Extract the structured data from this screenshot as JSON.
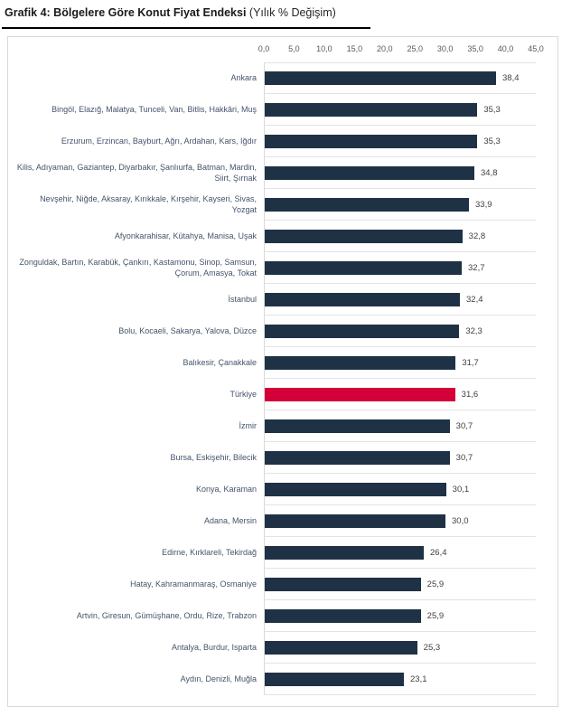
{
  "header": {
    "title": "Grafik 4: Bölgelere Göre Konut Fiyat Endeksi",
    "subtitle": "(Yılık % Değişim)"
  },
  "chart_data": {
    "type": "bar",
    "orientation": "horizontal",
    "title": "Grafik 4: Bölgelere Göre Konut Fiyat Endeksi",
    "subtitle": "(Yılık % Değişim)",
    "xlim": [
      0,
      45
    ],
    "x_tick_labels": [
      "0,0",
      "5,0",
      "10,0",
      "15,0",
      "20,0",
      "25,0",
      "30,0",
      "35,0",
      "40,0",
      "45,0"
    ],
    "axis_position": "top",
    "legend": "none",
    "grid": "horizontal category separators",
    "bar_color": "#1f3245",
    "highlight_color": "#d40038",
    "highlight_category": "Türkiye",
    "rows": [
      {
        "label": "Ankara",
        "value": 38.4,
        "value_label": "38,4"
      },
      {
        "label": "Bingöl, Elazığ, Malatya, Tunceli, Van, Bitlis, Hakkâri, Muş",
        "value": 35.3,
        "value_label": "35,3"
      },
      {
        "label": "Erzurum, Erzincan, Bayburt, Ağrı, Ardahan, Kars, Iğdır",
        "value": 35.3,
        "value_label": "35,3"
      },
      {
        "label": "Kilis, Adıyaman, Gaziantep, Diyarbakır, Şanlıurfa, Batman, Mardin, Siirt, Şırnak",
        "value": 34.8,
        "value_label": "34,8"
      },
      {
        "label": "Nevşehir, Niğde, Aksaray, Kırıkkale, Kırşehir, Kayseri, Sivas, Yozgat",
        "value": 33.9,
        "value_label": "33,9"
      },
      {
        "label": "Afyonkarahisar, Kütahya, Manisa, Uşak",
        "value": 32.8,
        "value_label": "32,8"
      },
      {
        "label": "Zonguldak, Bartın, Karabük, Çankırı, Kastamonu, Sinop, Samsun, Çorum, Amasya, Tokat",
        "value": 32.7,
        "value_label": "32,7"
      },
      {
        "label": "İstanbul",
        "value": 32.4,
        "value_label": "32,4"
      },
      {
        "label": "Bolu, Kocaeli, Sakarya, Yalova, Düzce",
        "value": 32.3,
        "value_label": "32,3"
      },
      {
        "label": "Balıkesir, Çanakkale",
        "value": 31.7,
        "value_label": "31,7"
      },
      {
        "label": "Türkiye",
        "value": 31.6,
        "value_label": "31,6"
      },
      {
        "label": "İzmir",
        "value": 30.7,
        "value_label": "30,7"
      },
      {
        "label": "Bursa, Eskişehir, Bilecik",
        "value": 30.7,
        "value_label": "30,7"
      },
      {
        "label": "Konya, Karaman",
        "value": 30.1,
        "value_label": "30,1"
      },
      {
        "label": "Adana, Mersin",
        "value": 30.0,
        "value_label": "30,0"
      },
      {
        "label": "Edirne, Kırklareli, Tekirdağ",
        "value": 26.4,
        "value_label": "26,4"
      },
      {
        "label": "Hatay, Kahramanmaraş, Osmaniye",
        "value": 25.9,
        "value_label": "25,9"
      },
      {
        "label": "Artvin, Giresun, Gümüşhane, Ordu, Rize, Trabzon",
        "value": 25.9,
        "value_label": "25,9"
      },
      {
        "label": "Antalya, Burdur, Isparta",
        "value": 25.3,
        "value_label": "25,3"
      },
      {
        "label": "Aydın, Denizli, Muğla",
        "value": 23.1,
        "value_label": "23,1"
      }
    ]
  }
}
